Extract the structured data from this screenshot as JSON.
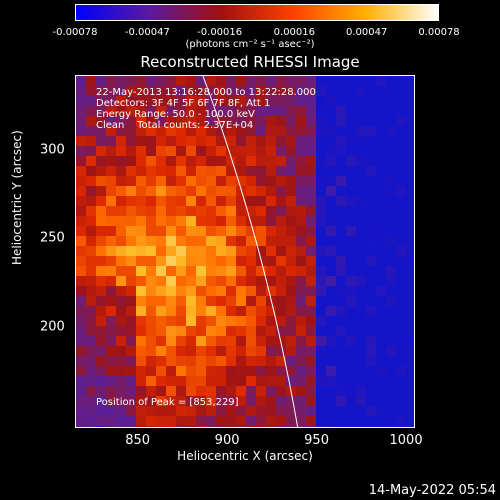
{
  "chart_data": {
    "type": "heatmap",
    "title": "Reconstructed RHESSI Image",
    "xlabel": "Heliocentric X (arcsec)",
    "ylabel": "Heliocentric Y (arcsec)",
    "xlim": [
      815,
      1005
    ],
    "ylim": [
      143,
      342
    ],
    "x_ticks": [
      850,
      900,
      950,
      1000
    ],
    "y_ticks": [
      200,
      250,
      300
    ],
    "colorbar": {
      "ticks": [
        "-0.00078",
        "-0.00047",
        "-0.00016",
        "0.00016",
        "0.00047",
        "0.00078"
      ],
      "tick_values": [
        -0.00078,
        -0.00047,
        -0.00016,
        0.00016,
        0.00047,
        0.00078
      ],
      "units": "(photons cm⁻² s⁻¹ asec⁻²)",
      "colors": [
        "#0000ff",
        "#5a1aa0",
        "#a01010",
        "#ff4000",
        "#ffb000",
        "#ffffff"
      ]
    },
    "annotations": [
      "22-May-2013 13:16:28.000 to 13:22:28.000",
      "Detectors: 3F 4F 5F 6F 7F 8F, Att 1",
      "Energy Range: 50.0 - 100.0 keV",
      "Clean    Total counts: 2.37E+04"
    ],
    "peak_label": "Position of Peak = [853,229]",
    "peak": [
      853,
      229
    ]
  },
  "footer": "14-May-2022 05:54"
}
